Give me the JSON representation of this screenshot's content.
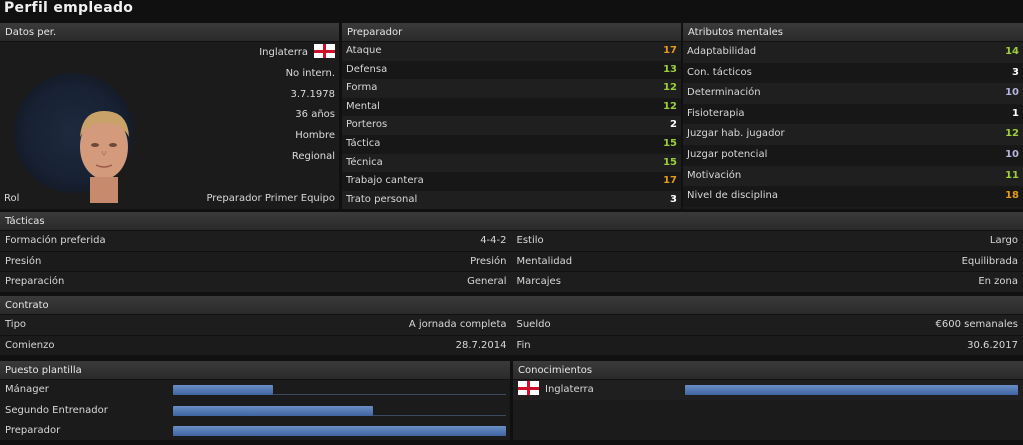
{
  "title": "Perfil empleado",
  "colors": {
    "green": "#9ccf3a",
    "orange": "#e49a1a",
    "white": "#ffffff",
    "lav": "#b4b4dc"
  },
  "datos": {
    "header": "Datos per.",
    "nacion": "Inglaterra",
    "internacional": "No intern.",
    "fecha": "3.7.1978",
    "edad": "36 años",
    "sexo": "Hombre",
    "nivel": "Regional",
    "rol_label": "Rol",
    "rol_value": "Preparador Primer Equipo"
  },
  "preparador": {
    "header": "Preparador",
    "items": [
      {
        "label": "Ataque",
        "value": "17",
        "color": "#e49a1a"
      },
      {
        "label": "Defensa",
        "value": "13",
        "color": "#9ccf3a"
      },
      {
        "label": "Forma",
        "value": "12",
        "color": "#9ccf3a"
      },
      {
        "label": "Mental",
        "value": "12",
        "color": "#9ccf3a"
      },
      {
        "label": "Porteros",
        "value": "2",
        "color": "#ffffff"
      },
      {
        "label": "Táctica",
        "value": "15",
        "color": "#9ccf3a"
      },
      {
        "label": "Técnica",
        "value": "15",
        "color": "#9ccf3a"
      },
      {
        "label": "Trabajo cantera",
        "value": "17",
        "color": "#e49a1a"
      },
      {
        "label": "Trato personal",
        "value": "3",
        "color": "#ffffff"
      }
    ]
  },
  "mental": {
    "header": "Atributos mentales",
    "items": [
      {
        "label": "Adaptabilidad",
        "value": "14",
        "color": "#9ccf3a"
      },
      {
        "label": "Con. tácticos",
        "value": "3",
        "color": "#ffffff"
      },
      {
        "label": "Determinación",
        "value": "10",
        "color": "#b4b4dc"
      },
      {
        "label": "Fisioterapia",
        "value": "1",
        "color": "#ffffff"
      },
      {
        "label": "Juzgar hab. jugador",
        "value": "12",
        "color": "#9ccf3a"
      },
      {
        "label": "Juzgar potencial",
        "value": "10",
        "color": "#b4b4dc"
      },
      {
        "label": "Motivación",
        "value": "11",
        "color": "#9ccf3a"
      },
      {
        "label": "Nivel de disciplina",
        "value": "18",
        "color": "#e49a1a"
      }
    ]
  },
  "tacticas": {
    "header": "Tácticas",
    "rows": [
      [
        {
          "label": "Formación preferida",
          "value": "4-4-2"
        },
        {
          "label": "Estilo",
          "value": "Largo"
        }
      ],
      [
        {
          "label": "Presión",
          "value": "Presión"
        },
        {
          "label": "Mentalidad",
          "value": "Equilibrada"
        }
      ],
      [
        {
          "label": "Preparación",
          "value": "General"
        },
        {
          "label": "Marcajes",
          "value": "En zona"
        }
      ]
    ]
  },
  "contrato": {
    "header": "Contrato",
    "rows": [
      [
        {
          "label": "Tipo",
          "value": "A jornada completa"
        },
        {
          "label": "Sueldo",
          "value": "€600 semanales"
        }
      ],
      [
        {
          "label": "Comienzo",
          "value": "28.7.2014"
        },
        {
          "label": "Fin",
          "value": "30.6.2017"
        }
      ]
    ]
  },
  "puesto": {
    "header": "Puesto plantilla",
    "items": [
      {
        "label": "Mánager",
        "fraction": 0.3
      },
      {
        "label": "Segundo Entrenador",
        "fraction": 0.6
      },
      {
        "label": "Preparador",
        "fraction": 1.0
      }
    ]
  },
  "conocimientos": {
    "header": "Conocimientos",
    "items": [
      {
        "label": "Inglaterra",
        "fraction": 1.0
      }
    ]
  }
}
